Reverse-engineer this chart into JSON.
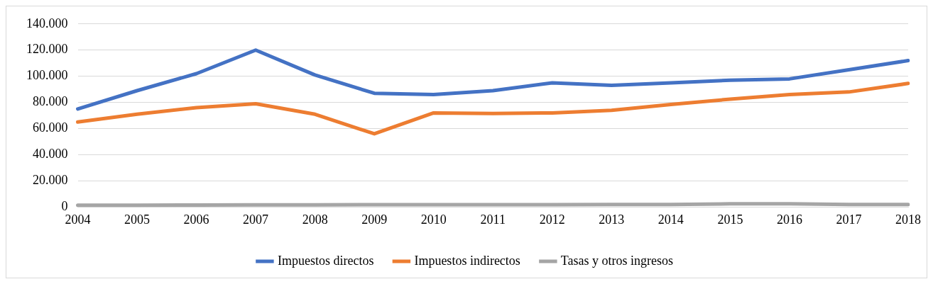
{
  "chart_data": {
    "type": "line",
    "categories": [
      "2004",
      "2005",
      "2006",
      "2007",
      "2008",
      "2009",
      "2010",
      "2011",
      "2012",
      "2013",
      "2014",
      "2015",
      "2016",
      "2017",
      "2018"
    ],
    "series": [
      {
        "name": "Impuestos directos",
        "color": "#4472c4",
        "values": [
          75000,
          89000,
          102000,
          120000,
          101000,
          87000,
          86000,
          89000,
          95000,
          93000,
          95000,
          97000,
          98000,
          105000,
          112000
        ]
      },
      {
        "name": "Impuestos indirectos",
        "color": "#ed7d31",
        "values": [
          65000,
          71000,
          76000,
          79000,
          71000,
          56000,
          72000,
          71500,
          72000,
          74000,
          78500,
          82500,
          86000,
          88000,
          94500
        ]
      },
      {
        "name": "Tasas y otros ingresos",
        "color": "#a5a5a5",
        "values": [
          1500,
          1500,
          1600,
          1700,
          1700,
          1800,
          1800,
          1800,
          1800,
          2000,
          2000,
          2500,
          2500,
          2000,
          2000
        ]
      }
    ],
    "ylim": [
      0,
      140000
    ],
    "yticks": [
      {
        "value": 0,
        "label": "0"
      },
      {
        "value": 20000,
        "label": "20.000"
      },
      {
        "value": 40000,
        "label": "40.000"
      },
      {
        "value": 60000,
        "label": "60.000"
      },
      {
        "value": 80000,
        "label": "80.000"
      },
      {
        "value": 100000,
        "label": "100.000"
      },
      {
        "value": 120000,
        "label": "120.000"
      },
      {
        "value": 140000,
        "label": "140.000"
      }
    ],
    "grid": "y",
    "legend": "bottom",
    "marker": "none",
    "line_style": "solid"
  }
}
